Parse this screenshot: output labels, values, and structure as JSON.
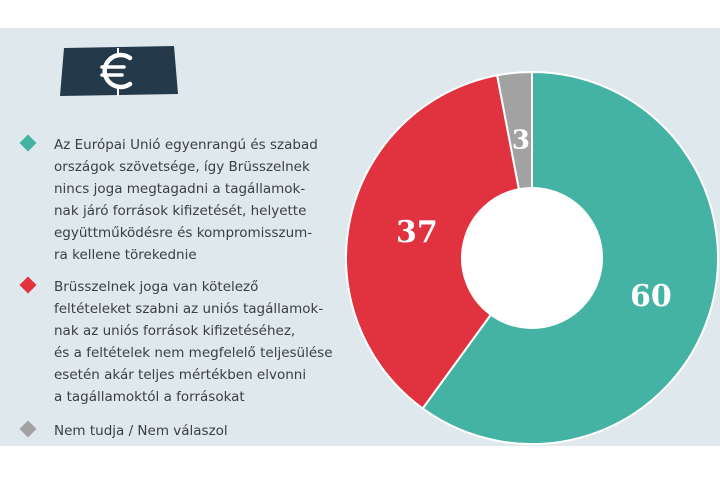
{
  "colors": {
    "panel": "#dfe8ec",
    "badge": "#24394a",
    "teal": "#45b3a3",
    "red": "#e0323f",
    "gray": "#a2a2a2"
  },
  "icons": {
    "badge": "euro-banknote-icon"
  },
  "legend": [
    {
      "text": "Az Európai Unió egyenrangú és szabad\nországok szövetsége, így Brüsszelnek\nnincs joga megtagadni a tagállamok-\nnak járó források kifizetését, helyette\negyüttműködésre és kompromisszum-\nra kellene törekednie",
      "color": "#45b3a3"
    },
    {
      "text": "Brüsszelnek joga van kötelező\nfeltételeket szabni az uniós tagállamok-\nnak az uniós források kifizetéséhez,\nés a feltételek nem megfelelő teljesülése\nesetén akár teljes mértékben elvonni\na tagállamoktól a forrásokat",
      "color": "#e0323f"
    },
    {
      "text": "Nem tudja / Nem válaszol",
      "color": "#a2a2a2"
    }
  ],
  "chart_data": {
    "type": "pie",
    "donut": true,
    "values": [
      60,
      37,
      3
    ],
    "data_labels": [
      "60",
      "37",
      "3"
    ],
    "colors": [
      "#45b3a3",
      "#e0323f",
      "#a2a2a2"
    ],
    "legend_placement": "left"
  }
}
